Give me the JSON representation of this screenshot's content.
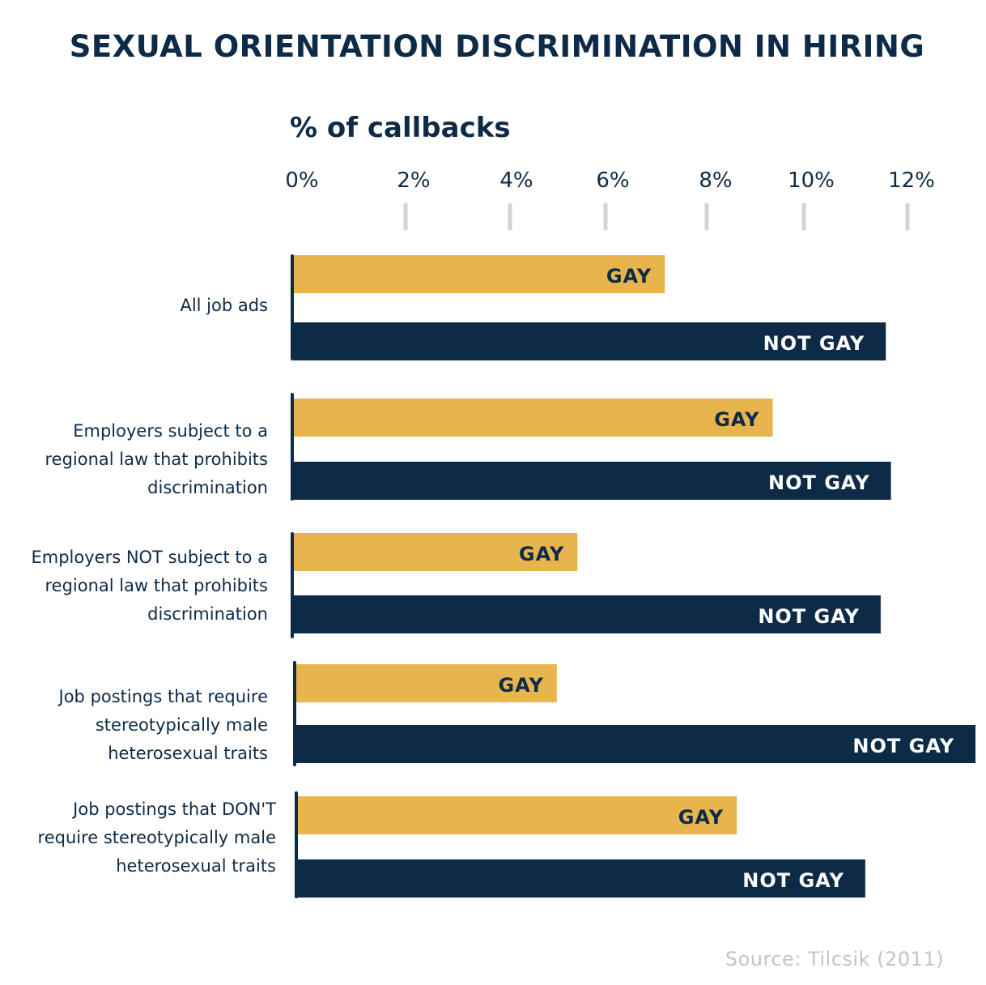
{
  "title": "SEXUAL ORIENTATION DISCRIMINATION IN HIRING",
  "axis_title": "% of callbacks",
  "source": "Source: Tilcsik (2011)",
  "colors": {
    "gay": "#e8b44e",
    "not_gay": "#0d2b47",
    "gay_label": "#0d2b47",
    "not_gay_label": "#ffffff",
    "tick": "#d3d3d3",
    "text": "#0d2b47"
  },
  "chart_data": {
    "type": "bar",
    "orientation": "horizontal",
    "title": "SEXUAL ORIENTATION DISCRIMINATION IN HIRING",
    "xlabel": "% of callbacks",
    "ylabel": "",
    "xlim": [
      0,
      13
    ],
    "x_ticks": [
      "0%",
      "2%",
      "4%",
      "6%",
      "8%",
      "10%",
      "12%"
    ],
    "grid": false,
    "categories": [
      "All job ads",
      "Employers subject to a\nregional law that prohibits \ndiscrimination",
      "Employers NOT subject to a\nregional law that prohibits \ndiscrimination",
      "Job postings that require\nstereotypically male\nheterosexual traits",
      "Job postings that DON'T\nrequire stereotypically male\nheterosexual traits"
    ],
    "series": [
      {
        "name": "GAY",
        "values": [
          7.2,
          9.3,
          5.5,
          5.1,
          8.6
        ]
      },
      {
        "name": "NOT GAY",
        "values": [
          11.5,
          11.6,
          11.4,
          13.3,
          11.1
        ]
      }
    ],
    "bar_labels": [
      "GAY",
      "NOT GAY"
    ]
  }
}
